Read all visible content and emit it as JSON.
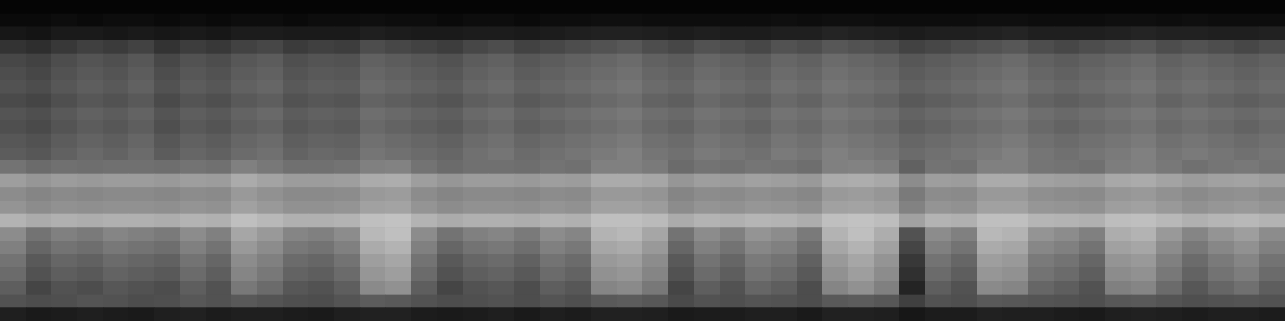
{
  "chart_data": {
    "type": "heatmap",
    "tick_labels": false,
    "zlim": [
      0,
      100
    ],
    "values": [
      [
        2,
        2,
        2,
        2,
        2,
        2,
        2,
        2,
        2,
        2,
        2,
        2,
        2,
        2,
        2,
        2,
        2,
        2,
        2,
        2,
        2,
        2,
        2,
        2,
        2,
        2,
        2,
        2,
        2,
        2,
        2,
        2,
        2,
        2,
        2,
        2,
        2,
        2,
        2,
        2,
        2,
        2,
        2,
        2,
        2,
        2,
        2,
        2,
        2,
        2
      ],
      [
        4,
        4,
        5,
        4,
        5,
        5,
        4,
        5,
        4,
        5,
        5,
        4,
        5,
        5,
        6,
        5,
        5,
        4,
        5,
        5,
        4,
        5,
        5,
        6,
        6,
        5,
        5,
        5,
        5,
        5,
        6,
        5,
        6,
        6,
        5,
        5,
        5,
        5,
        6,
        6,
        5,
        5,
        5,
        6,
        6,
        5,
        6,
        5,
        5,
        5
      ],
      [
        9,
        8,
        10,
        10,
        9,
        10,
        9,
        10,
        9,
        11,
        11,
        10,
        10,
        10,
        12,
        11,
        10,
        10,
        11,
        11,
        10,
        11,
        12,
        13,
        13,
        12,
        11,
        12,
        11,
        11,
        12,
        12,
        14,
        13,
        12,
        11,
        12,
        12,
        13,
        14,
        12,
        12,
        12,
        13,
        14,
        13,
        13,
        12,
        12,
        13
      ],
      [
        20,
        18,
        22,
        25,
        23,
        26,
        20,
        24,
        22,
        26,
        28,
        23,
        25,
        24,
        30,
        28,
        26,
        24,
        28,
        30,
        26,
        28,
        30,
        32,
        34,
        30,
        28,
        32,
        30,
        28,
        32,
        30,
        34,
        32,
        30,
        26,
        28,
        30,
        32,
        34,
        30,
        28,
        30,
        32,
        34,
        30,
        32,
        30,
        28,
        30
      ],
      [
        28,
        26,
        30,
        33,
        31,
        34,
        28,
        32,
        30,
        34,
        36,
        31,
        33,
        32,
        38,
        36,
        34,
        32,
        36,
        38,
        34,
        36,
        38,
        40,
        42,
        38,
        36,
        40,
        38,
        36,
        40,
        38,
        42,
        40,
        38,
        34,
        36,
        38,
        40,
        42,
        38,
        36,
        38,
        40,
        42,
        38,
        40,
        38,
        36,
        38
      ],
      [
        30,
        28,
        32,
        35,
        33,
        36,
        30,
        34,
        32,
        36,
        38,
        33,
        35,
        34,
        40,
        38,
        36,
        34,
        38,
        40,
        36,
        38,
        40,
        42,
        44,
        40,
        38,
        42,
        40,
        38,
        42,
        40,
        44,
        42,
        40,
        36,
        38,
        40,
        42,
        44,
        40,
        38,
        40,
        42,
        44,
        40,
        42,
        40,
        38,
        40
      ],
      [
        32,
        30,
        34,
        37,
        35,
        38,
        32,
        36,
        34,
        38,
        40,
        35,
        37,
        36,
        42,
        40,
        38,
        36,
        40,
        42,
        38,
        40,
        42,
        44,
        46,
        42,
        40,
        44,
        42,
        40,
        44,
        42,
        46,
        44,
        42,
        38,
        40,
        42,
        44,
        46,
        42,
        40,
        42,
        44,
        46,
        42,
        44,
        42,
        40,
        42
      ],
      [
        29,
        27,
        31,
        34,
        32,
        35,
        29,
        33,
        31,
        35,
        37,
        32,
        34,
        33,
        39,
        37,
        35,
        33,
        37,
        39,
        35,
        37,
        39,
        41,
        43,
        39,
        37,
        41,
        39,
        37,
        41,
        39,
        43,
        41,
        39,
        35,
        37,
        39,
        41,
        43,
        39,
        37,
        39,
        41,
        43,
        39,
        41,
        39,
        37,
        39
      ],
      [
        33,
        31,
        35,
        38,
        36,
        39,
        33,
        37,
        35,
        39,
        41,
        36,
        38,
        37,
        43,
        41,
        39,
        37,
        41,
        43,
        39,
        41,
        43,
        45,
        47,
        43,
        41,
        45,
        43,
        41,
        45,
        43,
        47,
        45,
        43,
        39,
        41,
        43,
        45,
        47,
        43,
        41,
        43,
        45,
        47,
        43,
        45,
        43,
        41,
        43
      ],
      [
        31,
        29,
        33,
        36,
        34,
        37,
        31,
        35,
        33,
        37,
        39,
        34,
        36,
        35,
        41,
        39,
        37,
        35,
        39,
        41,
        37,
        39,
        41,
        43,
        45,
        41,
        39,
        43,
        41,
        39,
        43,
        41,
        45,
        43,
        41,
        37,
        39,
        41,
        43,
        45,
        41,
        39,
        41,
        43,
        45,
        41,
        43,
        41,
        39,
        41
      ],
      [
        34,
        32,
        36,
        39,
        37,
        40,
        34,
        38,
        36,
        40,
        42,
        37,
        39,
        38,
        44,
        42,
        40,
        38,
        42,
        44,
        40,
        42,
        44,
        46,
        48,
        44,
        42,
        46,
        44,
        42,
        46,
        44,
        48,
        46,
        44,
        40,
        42,
        44,
        46,
        48,
        44,
        42,
        44,
        46,
        48,
        44,
        46,
        44,
        42,
        44
      ],
      [
        36,
        34,
        38,
        41,
        39,
        42,
        36,
        40,
        38,
        42,
        44,
        39,
        41,
        40,
        46,
        44,
        42,
        40,
        44,
        46,
        42,
        44,
        46,
        48,
        50,
        46,
        44,
        48,
        46,
        44,
        48,
        46,
        50,
        48,
        46,
        42,
        44,
        46,
        48,
        50,
        46,
        44,
        46,
        48,
        50,
        46,
        48,
        46,
        44,
        46
      ],
      [
        45,
        42,
        44,
        43,
        44,
        44,
        43,
        45,
        44,
        50,
        47,
        44,
        44,
        45,
        50,
        51,
        45,
        42,
        44,
        44,
        43,
        45,
        44,
        50,
        50,
        48,
        42,
        45,
        44,
        46,
        45,
        43,
        50,
        51,
        49,
        38,
        45,
        44,
        50,
        50,
        46,
        45,
        44,
        49,
        50,
        47,
        44,
        46,
        47,
        45
      ],
      [
        62,
        59,
        61,
        60,
        61,
        61,
        60,
        62,
        61,
        67,
        64,
        61,
        61,
        62,
        67,
        68,
        62,
        59,
        61,
        61,
        60,
        62,
        61,
        67,
        67,
        65,
        59,
        62,
        61,
        63,
        62,
        60,
        67,
        68,
        66,
        55,
        62,
        61,
        67,
        67,
        63,
        62,
        61,
        66,
        67,
        64,
        61,
        63,
        64,
        62
      ],
      [
        55,
        52,
        54,
        53,
        54,
        54,
        53,
        55,
        54,
        60,
        57,
        54,
        54,
        55,
        60,
        61,
        55,
        52,
        54,
        54,
        53,
        55,
        54,
        60,
        60,
        58,
        52,
        55,
        54,
        56,
        55,
        53,
        60,
        61,
        59,
        48,
        55,
        54,
        60,
        60,
        56,
        55,
        54,
        59,
        60,
        57,
        54,
        56,
        57,
        55
      ],
      [
        58,
        55,
        57,
        56,
        57,
        57,
        56,
        58,
        57,
        63,
        60,
        57,
        57,
        58,
        63,
        64,
        58,
        55,
        57,
        57,
        56,
        58,
        57,
        63,
        63,
        61,
        55,
        58,
        57,
        59,
        58,
        56,
        63,
        64,
        62,
        51,
        58,
        57,
        63,
        63,
        59,
        58,
        57,
        62,
        63,
        60,
        57,
        59,
        60,
        58
      ],
      [
        70,
        67,
        69,
        68,
        69,
        69,
        68,
        70,
        69,
        75,
        72,
        69,
        69,
        70,
        75,
        76,
        70,
        67,
        69,
        69,
        68,
        70,
        69,
        75,
        75,
        73,
        67,
        70,
        69,
        71,
        70,
        68,
        75,
        76,
        74,
        63,
        70,
        69,
        75,
        75,
        71,
        70,
        69,
        74,
        75,
        72,
        69,
        71,
        72,
        70
      ],
      [
        55,
        45,
        50,
        48,
        52,
        50,
        48,
        55,
        50,
        65,
        60,
        52,
        50,
        55,
        72,
        75,
        55,
        45,
        50,
        52,
        48,
        55,
        52,
        70,
        72,
        65,
        45,
        55,
        50,
        58,
        55,
        48,
        70,
        75,
        68,
        32,
        55,
        50,
        72,
        70,
        58,
        55,
        50,
        68,
        70,
        60,
        52,
        58,
        62,
        55
      ],
      [
        50,
        40,
        45,
        43,
        47,
        45,
        43,
        50,
        45,
        60,
        55,
        47,
        45,
        50,
        67,
        70,
        50,
        40,
        45,
        47,
        43,
        50,
        47,
        65,
        67,
        60,
        40,
        50,
        45,
        53,
        50,
        43,
        65,
        70,
        63,
        27,
        50,
        45,
        67,
        65,
        53,
        50,
        45,
        63,
        65,
        55,
        47,
        53,
        57,
        50
      ],
      [
        45,
        35,
        40,
        38,
        42,
        40,
        38,
        45,
        40,
        55,
        50,
        42,
        40,
        45,
        62,
        65,
        45,
        35,
        40,
        42,
        38,
        45,
        42,
        60,
        62,
        55,
        35,
        45,
        40,
        48,
        45,
        38,
        60,
        65,
        58,
        22,
        45,
        40,
        62,
        60,
        48,
        45,
        40,
        58,
        60,
        50,
        42,
        48,
        52,
        45
      ],
      [
        42,
        32,
        37,
        35,
        39,
        37,
        35,
        42,
        37,
        52,
        47,
        39,
        37,
        42,
        59,
        62,
        42,
        32,
        37,
        39,
        35,
        42,
        39,
        57,
        59,
        52,
        32,
        42,
        37,
        45,
        42,
        35,
        57,
        62,
        55,
        19,
        42,
        37,
        59,
        57,
        45,
        42,
        37,
        55,
        57,
        47,
        39,
        45,
        49,
        42
      ],
      [
        37,
        27,
        32,
        30,
        34,
        32,
        30,
        37,
        32,
        47,
        42,
        34,
        32,
        37,
        54,
        57,
        37,
        27,
        32,
        34,
        30,
        37,
        34,
        52,
        54,
        47,
        27,
        37,
        32,
        40,
        37,
        30,
        52,
        57,
        50,
        14,
        37,
        32,
        54,
        52,
        40,
        37,
        32,
        50,
        52,
        42,
        34,
        40,
        44,
        37
      ],
      [
        32,
        30,
        31,
        33,
        32,
        30,
        31,
        34,
        32,
        35,
        33,
        31,
        30,
        33,
        36,
        35,
        32,
        30,
        31,
        32,
        30,
        33,
        31,
        35,
        36,
        34,
        29,
        32,
        31,
        33,
        32,
        30,
        35,
        36,
        34,
        25,
        32,
        31,
        35,
        34,
        33,
        32,
        31,
        34,
        35,
        33,
        31,
        32,
        33,
        32
      ],
      [
        12,
        10,
        11,
        12,
        11,
        10,
        12,
        13,
        11,
        12,
        12,
        11,
        10,
        12,
        13,
        13,
        11,
        10,
        11,
        12,
        10,
        12,
        11,
        13,
        13,
        12,
        10,
        11,
        11,
        12,
        12,
        10,
        13,
        13,
        12,
        9,
        11,
        11,
        13,
        12,
        12,
        11,
        10,
        12,
        13,
        12,
        11,
        12,
        12,
        11
      ]
    ]
  }
}
